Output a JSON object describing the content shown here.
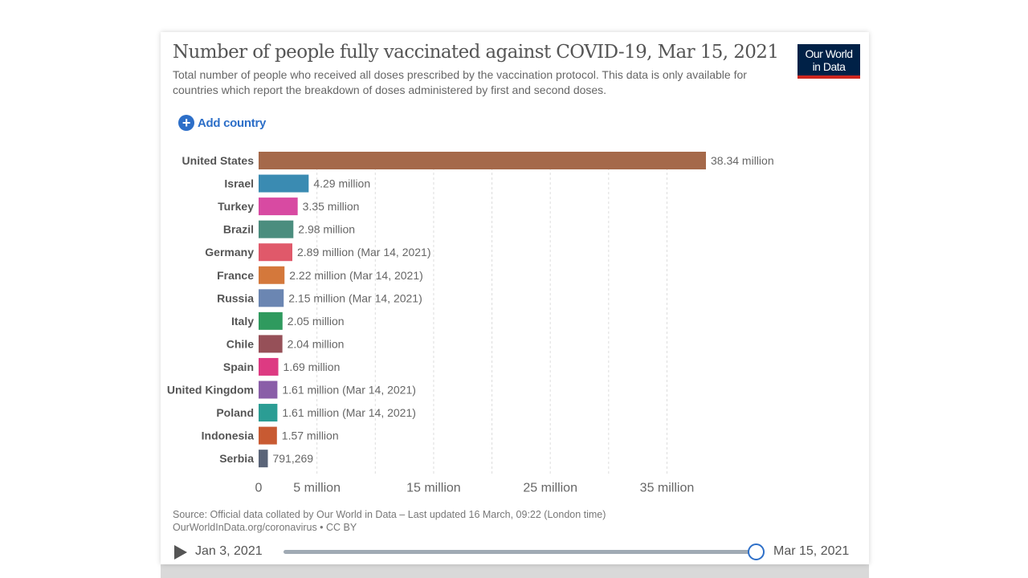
{
  "header": {
    "title": "Number of people fully vaccinated against COVID-19, Mar 15, 2021",
    "subtitle": "Total number of people who received all doses prescribed by the vaccination protocol. This data is only available for countries which report the breakdown of doses administered by first and second doses.",
    "logo_line1": "Our World",
    "logo_line2": "in Data",
    "add_country": "Add country"
  },
  "chart_data": {
    "type": "bar",
    "orientation": "horizontal",
    "title": "Number of people fully vaccinated against COVID-19, Mar 15, 2021",
    "categories": [
      "United States",
      "Israel",
      "Turkey",
      "Brazil",
      "Germany",
      "France",
      "Russia",
      "Italy",
      "Chile",
      "Spain",
      "United Kingdom",
      "Poland",
      "Indonesia",
      "Serbia"
    ],
    "values": [
      38340000,
      4290000,
      3350000,
      2980000,
      2890000,
      2220000,
      2150000,
      2050000,
      2040000,
      1690000,
      1610000,
      1610000,
      1570000,
      791269
    ],
    "labels": [
      "38.34 million",
      "4.29 million",
      "3.35 million",
      "2.98 million",
      "2.89 million (Mar 14, 2021)",
      "2.22 million (Mar 14, 2021)",
      "2.15 million (Mar 14, 2021)",
      "2.05 million",
      "2.04 million",
      "1.69 million",
      "1.61 million (Mar 14, 2021)",
      "1.61 million (Mar 14, 2021)",
      "1.57 million",
      "791,269"
    ],
    "colors": [
      "#a5694a",
      "#3a8bb2",
      "#d84aa2",
      "#4b8d7e",
      "#e0596a",
      "#d4783b",
      "#6b86b2",
      "#2f9a5e",
      "#965058",
      "#dd3a82",
      "#8a5ea8",
      "#2b9d94",
      "#c85a32",
      "#5a6478"
    ],
    "xlim": [
      0,
      38340000
    ],
    "grid_ticks": [
      5000000,
      10000000,
      15000000,
      20000000,
      25000000,
      30000000,
      35000000
    ],
    "tick_labels": [
      {
        "value": 0,
        "label": "0"
      },
      {
        "value": 5000000,
        "label": "5 million"
      },
      {
        "value": 15000000,
        "label": "15 million"
      },
      {
        "value": 25000000,
        "label": "25 million"
      },
      {
        "value": 35000000,
        "label": "35 million"
      }
    ],
    "grid": true
  },
  "footer": {
    "source": "Source: Official data collated by Our World in Data – Last updated 16 March, 09:22 (London time)",
    "link": "OurWorldInData.org/coronavirus • CC BY"
  },
  "timeline": {
    "start": "Jan 3, 2021",
    "end": "Mar 15, 2021",
    "position": 1.0
  }
}
